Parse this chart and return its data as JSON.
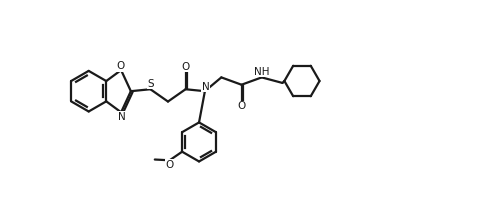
{
  "bg_color": "#ffffff",
  "line_color": "#1a1a1a",
  "line_width": 1.6,
  "fig_width": 4.78,
  "fig_height": 1.98,
  "dpi": 100,
  "xlim": [
    0,
    10
  ],
  "ylim": [
    -0.5,
    4.5
  ]
}
